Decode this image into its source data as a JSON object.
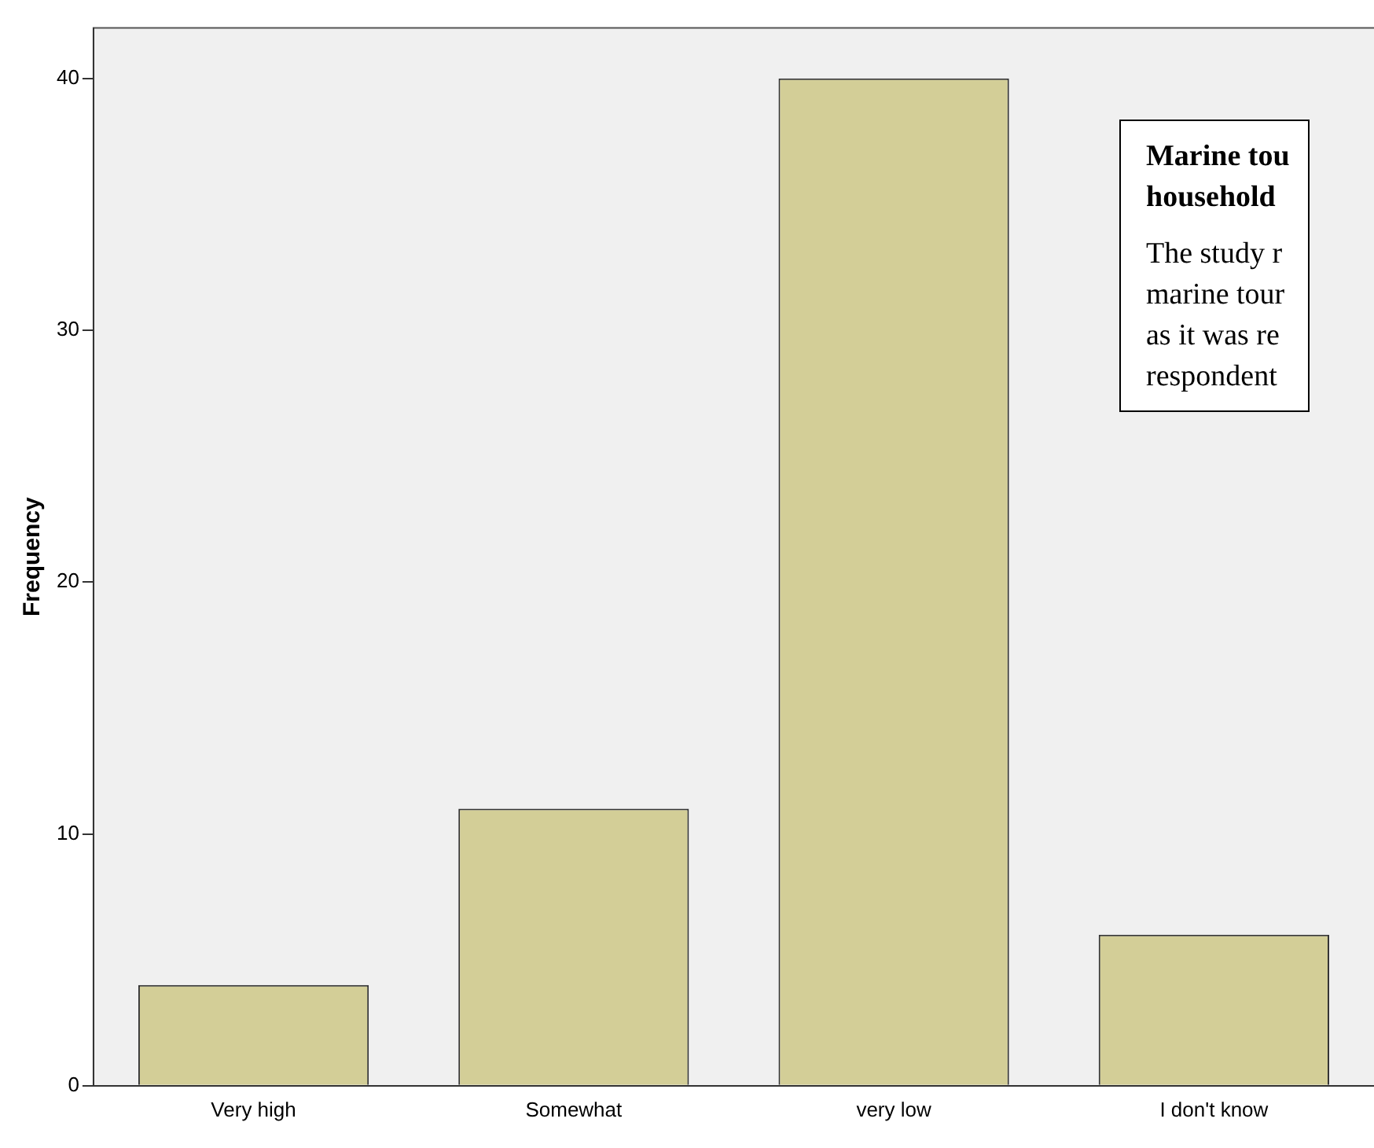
{
  "chart_data": {
    "type": "bar",
    "ylabel": "Frequency",
    "categories": [
      "Very high",
      "Somewhat",
      "very low",
      "I don't know"
    ],
    "values": [
      4,
      11,
      40,
      6
    ],
    "color": "#d3ce97",
    "ylim": [
      0,
      42
    ],
    "yticks": [
      0,
      10,
      20,
      30,
      40
    ],
    "grid": false,
    "annotations": [
      "Marine tou\nhousehold",
      "The study r\nmarine tour\nas it was re\nrespondent"
    ]
  }
}
